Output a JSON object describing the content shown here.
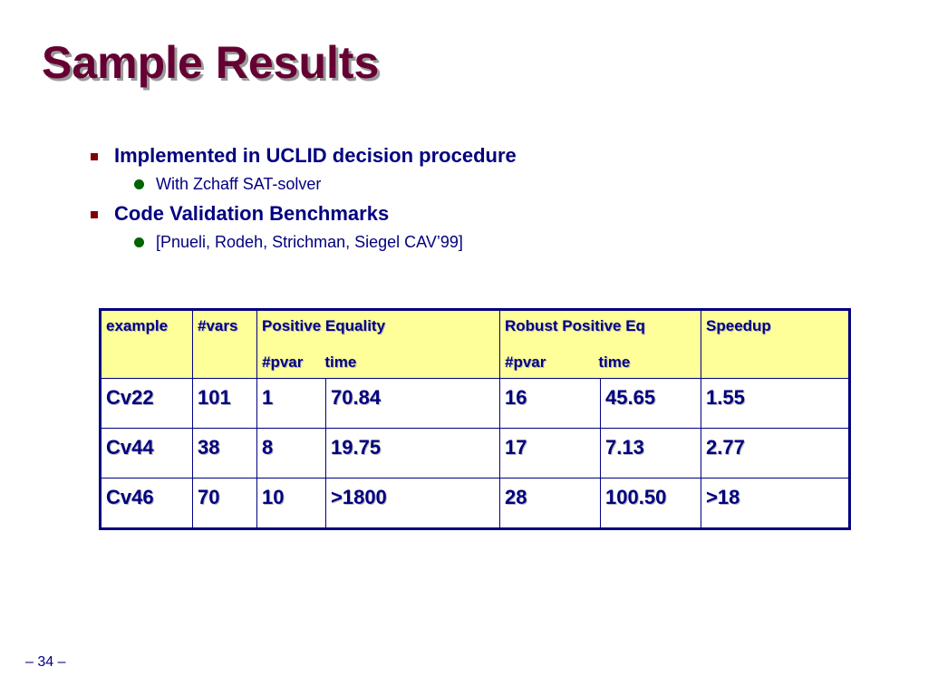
{
  "slide": {
    "title": "Sample Results",
    "page_number": "– 34 –"
  },
  "bullets": [
    {
      "text": "Implemented in UCLID decision procedure",
      "sub": "With Zchaff SAT-solver"
    },
    {
      "text": "Code Validation Benchmarks",
      "sub": "[Pnueli, Rodeh, Strichman, Siegel CAV’99]"
    }
  ],
  "colors": {
    "title": "#660033",
    "text": "#000080",
    "header_fill": "#ffff99",
    "square_bullet": "#800000",
    "round_bullet": "#006400"
  },
  "table": {
    "headers": {
      "example": "example",
      "vars": "#vars",
      "positive_equality": "Positive Equality",
      "positive_equality_pvar": "#pvar",
      "positive_equality_time": "time",
      "robust_positive_eq": "Robust Positive Eq",
      "robust_positive_eq_pvar": "#pvar",
      "robust_positive_eq_time": "time",
      "speedup": "Speedup"
    },
    "rows": [
      {
        "example": "Cv22",
        "vars": "101",
        "pe_pvar": "1",
        "pe_time": "70.84",
        "rp_pvar": "16",
        "rp_time": "45.65",
        "speedup": "1.55"
      },
      {
        "example": "Cv44",
        "vars": "38",
        "pe_pvar": "8",
        "pe_time": "19.75",
        "rp_pvar": "17",
        "rp_time": "7.13",
        "speedup": "2.77"
      },
      {
        "example": "Cv46",
        "vars": "70",
        "pe_pvar": "10",
        "pe_time": ">1800",
        "rp_pvar": "28",
        "rp_time": "100.50",
        "speedup": ">18"
      }
    ]
  }
}
